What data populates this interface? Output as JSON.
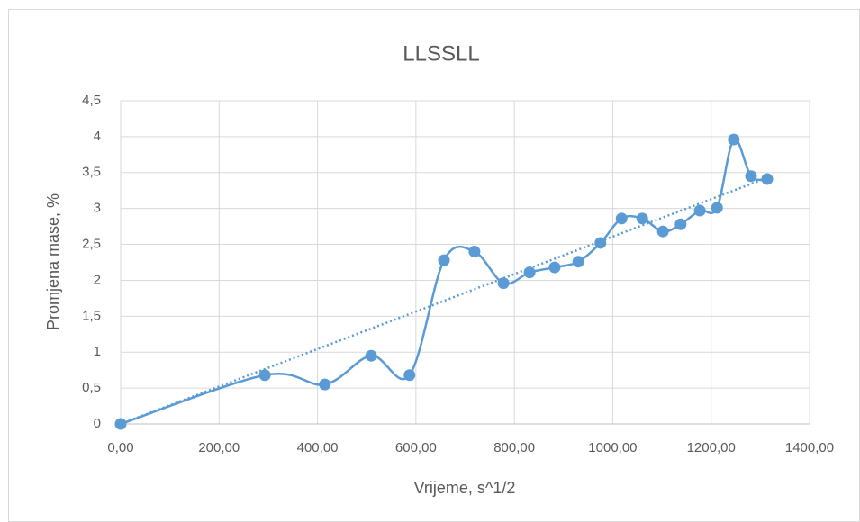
{
  "chart_data": {
    "type": "scatter",
    "title": "LLSSLL",
    "x_label": "Vrijeme, s^1/2",
    "y_label": "Promjena mase, %",
    "series": [
      {
        "name": "LLSSLL",
        "color": "#5b9bd5",
        "x": [
          0,
          293,
          415,
          509,
          587,
          657,
          719,
          778,
          831,
          882,
          930,
          975,
          1018,
          1060,
          1102,
          1138,
          1177,
          1212,
          1246,
          1281,
          1314
        ],
        "values": [
          0,
          0.68,
          0.55,
          0.95,
          0.68,
          2.28,
          2.4,
          1.96,
          2.11,
          2.18,
          2.26,
          2.52,
          2.86,
          2.86,
          2.68,
          2.78,
          2.97,
          3.01,
          3.96,
          3.45,
          3.41
        ]
      }
    ],
    "smooth": true,
    "trendline": "linear",
    "xlim": [
      0,
      1400
    ],
    "xticks": [
      {
        "value": 0,
        "label": "0,00"
      },
      {
        "value": 200,
        "label": "200,00"
      },
      {
        "value": 400,
        "label": "400,00"
      },
      {
        "value": 600,
        "label": "600,00"
      },
      {
        "value": 800,
        "label": "800,00"
      },
      {
        "value": 1000,
        "label": "1000,00"
      },
      {
        "value": 1200,
        "label": "1200,00"
      },
      {
        "value": 1400,
        "label": "1400,00"
      }
    ],
    "ylim": [
      0,
      4.5
    ],
    "yticks": [
      0,
      {
        "value": 0.5,
        "label": "0,5"
      },
      1,
      {
        "value": 1.5,
        "label": "1,5"
      },
      2,
      {
        "value": 2.5,
        "label": "2,5"
      },
      3,
      {
        "value": 3.5,
        "label": "3,5"
      },
      4,
      {
        "value": 4.5,
        "label": "4,5"
      }
    ],
    "grid": true
  }
}
